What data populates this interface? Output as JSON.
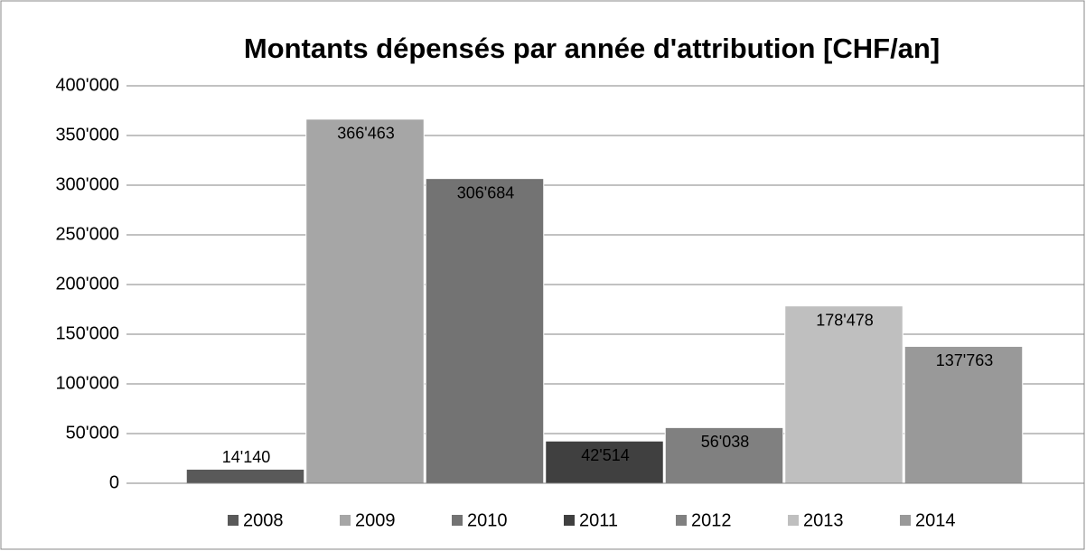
{
  "chart_data": {
    "type": "bar",
    "title": "Montants dépensés par année d'attribution [CHF/an]",
    "categories": [
      null
    ],
    "series": [
      {
        "name": "2008",
        "color": "#595959",
        "values": [
          14140
        ],
        "value_labels": [
          "14'140"
        ]
      },
      {
        "name": "2009",
        "color": "#a6a6a6",
        "values": [
          366463
        ],
        "value_labels": [
          "366'463"
        ]
      },
      {
        "name": "2010",
        "color": "#737373",
        "values": [
          306684
        ],
        "value_labels": [
          "306'684"
        ]
      },
      {
        "name": "2011",
        "color": "#404040",
        "values": [
          42514
        ],
        "value_labels": [
          "42'514"
        ]
      },
      {
        "name": "2012",
        "color": "#808080",
        "values": [
          56038
        ],
        "value_labels": [
          "56'038"
        ]
      },
      {
        "name": "2013",
        "color": "#bfbfbf",
        "values": [
          178478
        ],
        "value_labels": [
          "178'478"
        ]
      },
      {
        "name": "2014",
        "color": "#999999",
        "values": [
          137763
        ],
        "value_labels": [
          "137'763"
        ]
      }
    ],
    "ylim": [
      0,
      400000
    ],
    "yticks": [
      0,
      {
        "value": 50000,
        "label": "50'000"
      },
      {
        "value": 100000,
        "label": "100'000"
      },
      {
        "value": 150000,
        "label": "150'000"
      },
      {
        "value": 200000,
        "label": "200'000"
      },
      {
        "value": 250000,
        "label": "250'000"
      },
      {
        "value": 300000,
        "label": "300'000"
      },
      {
        "value": 350000,
        "label": "350'000"
      },
      {
        "value": 400000,
        "label": "400'000"
      }
    ],
    "grid": true,
    "legend": "bottom"
  }
}
